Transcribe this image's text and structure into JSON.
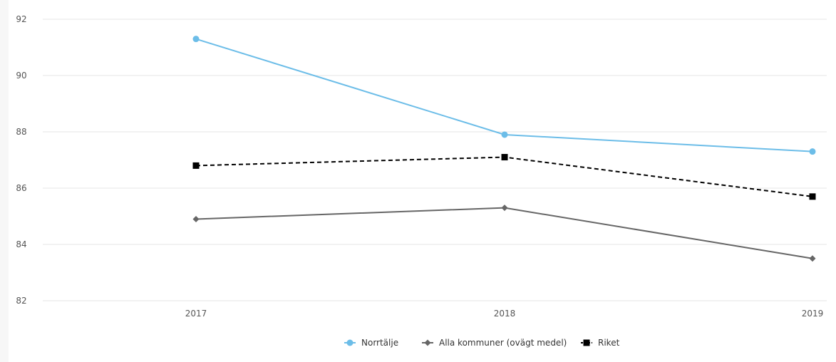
{
  "chart_data": {
    "type": "line",
    "categories": [
      "2017",
      "2018",
      "2019"
    ],
    "ylim": [
      82,
      92
    ],
    "yticks": [
      "82",
      "84",
      "86",
      "88",
      "90",
      "92"
    ],
    "grid": "horizontal",
    "legend_position": "bottom-center",
    "series": [
      {
        "name": "Norrtälje",
        "values": [
          91.3,
          87.9,
          87.3
        ],
        "color": "#6cbde8",
        "marker": "circle",
        "dash": "solid"
      },
      {
        "name": "Alla kommuner (ovägt medel)",
        "values": [
          84.9,
          85.3,
          83.5
        ],
        "color": "#666666",
        "marker": "diamond",
        "dash": "solid"
      },
      {
        "name": "Riket",
        "values": [
          86.8,
          87.1,
          85.7
        ],
        "color": "#000000",
        "marker": "square",
        "dash": "dashed"
      }
    ]
  }
}
